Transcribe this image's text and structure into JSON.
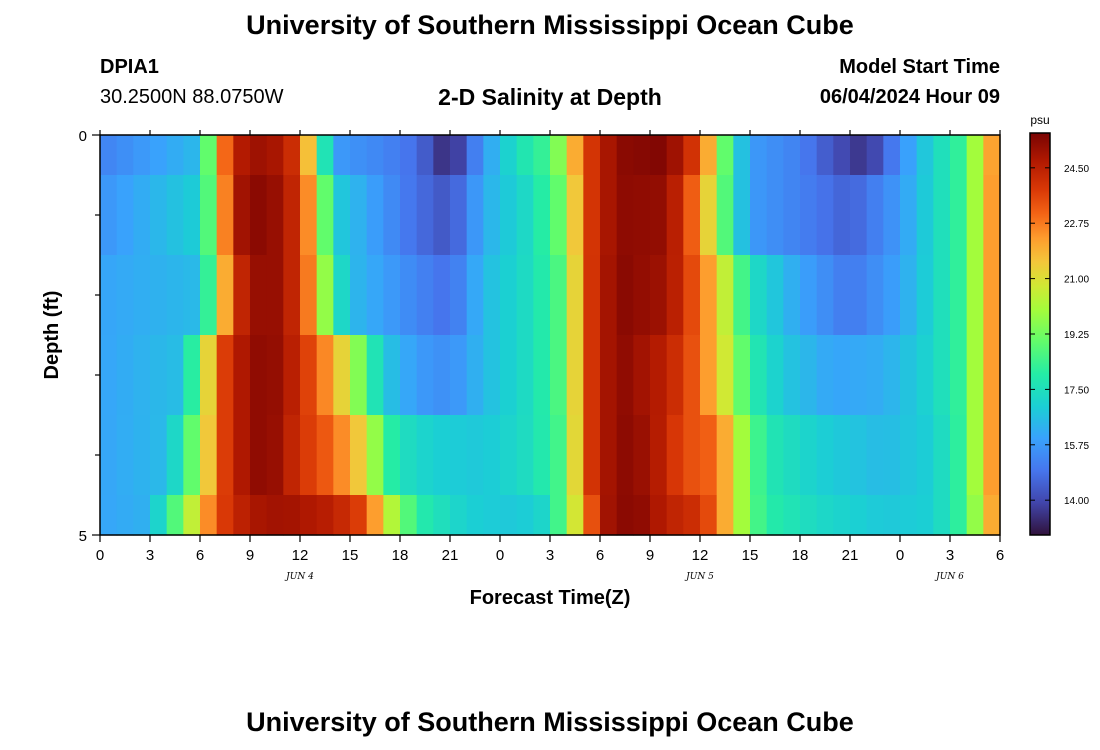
{
  "header": {
    "title": "University of Southern Mississippi Ocean Cube",
    "footer_title": "University of Southern Mississippi Ocean Cube",
    "station_id": "DPIA1",
    "coordinates": "30.2500N  88.0750W",
    "model_start_label": "Model Start Time",
    "model_start_value": "06/04/2024 Hour 09"
  },
  "chart_data": {
    "type": "heatmap",
    "title": "2-D Salinity at Depth",
    "xlabel": "Forecast Time(Z)",
    "ylabel": "Depth (ft)",
    "colorbar_unit": "psu",
    "colorbar_ticks": [
      "24.50",
      "22.75",
      "21.00",
      "19.25",
      "17.50",
      "15.75",
      "14.00"
    ],
    "colorbar_range": [
      12.9,
      25.6
    ],
    "x_tick_labels": [
      "0",
      "3",
      "6",
      "9",
      "12",
      "15",
      "18",
      "21",
      "0",
      "3",
      "6",
      "9",
      "12",
      "15",
      "18",
      "21",
      "0",
      "3",
      "6"
    ],
    "x_range_hours": [
      0,
      54
    ],
    "date_labels": [
      {
        "text": "JUN 4",
        "hour": 12
      },
      {
        "text": "JUN 5",
        "hour": 36
      },
      {
        "text": "JUN 6",
        "hour": 51
      }
    ],
    "y_tick_labels": [
      "0",
      "5"
    ],
    "y_range": [
      0,
      5
    ],
    "layers": [
      "0-0.5",
      "0.5-1.5",
      "1.5-2.5",
      "2.5-3.5",
      "3.5-4.5",
      "4.5-5"
    ],
    "layer_depths": [
      [
        0,
        0.5
      ],
      [
        0.5,
        1.5
      ],
      [
        1.5,
        2.5
      ],
      [
        2.5,
        3.5
      ],
      [
        3.5,
        4.5
      ],
      [
        4.5,
        5
      ]
    ],
    "time_step_hours": 1,
    "salinity_keyframes_by_layer": [
      [
        [
          0,
          15.2
        ],
        [
          6,
          16.5
        ],
        [
          7,
          21.5
        ],
        [
          8,
          24.5
        ],
        [
          10,
          25.2
        ],
        [
          12,
          23.8
        ],
        [
          13,
          19.5
        ],
        [
          14,
          15.8
        ],
        [
          17,
          15.3
        ],
        [
          19,
          14.8
        ],
        [
          21,
          13.2
        ],
        [
          23,
          15.8
        ],
        [
          25,
          17.5
        ],
        [
          27,
          18.5
        ],
        [
          28,
          20.5
        ],
        [
          29,
          23.5
        ],
        [
          31,
          25.3
        ],
        [
          34,
          25.5
        ],
        [
          36,
          23.5
        ],
        [
          37,
          20.5
        ],
        [
          38,
          17.5
        ],
        [
          39,
          15.8
        ],
        [
          42,
          15.2
        ],
        [
          44,
          14.2
        ],
        [
          46,
          13.5
        ],
        [
          48,
          15.5
        ],
        [
          50,
          17.2
        ],
        [
          52,
          18.5
        ],
        [
          53,
          21.5
        ],
        [
          54,
          22.8
        ]
      ],
      [
        [
          0,
          15.6
        ],
        [
          6,
          17.0
        ],
        [
          7,
          20.5
        ],
        [
          8,
          24.8
        ],
        [
          10,
          25.5
        ],
        [
          12,
          24.0
        ],
        [
          13,
          21.0
        ],
        [
          14,
          17.0
        ],
        [
          17,
          15.6
        ],
        [
          19,
          14.8
        ],
        [
          21,
          14.2
        ],
        [
          23,
          16.2
        ],
        [
          26,
          17.5
        ],
        [
          28,
          19.5
        ],
        [
          29,
          23.5
        ],
        [
          31,
          25.3
        ],
        [
          34,
          25.2
        ],
        [
          36,
          22.5
        ],
        [
          37,
          20.0
        ],
        [
          38,
          17.5
        ],
        [
          39,
          15.8
        ],
        [
          43,
          15.0
        ],
        [
          45,
          14.5
        ],
        [
          48,
          15.8
        ],
        [
          50,
          17.2
        ],
        [
          52,
          18.5
        ],
        [
          53,
          21.5
        ],
        [
          54,
          23.0
        ]
      ],
      [
        [
          0,
          16.0
        ],
        [
          6,
          16.5
        ],
        [
          7,
          20.0
        ],
        [
          8,
          24.0
        ],
        [
          10,
          25.5
        ],
        [
          12,
          24.0
        ],
        [
          13,
          21.5
        ],
        [
          14,
          18.0
        ],
        [
          15,
          16.5
        ],
        [
          19,
          15.3
        ],
        [
          21,
          14.8
        ],
        [
          23,
          16.5
        ],
        [
          26,
          17.5
        ],
        [
          28,
          19.0
        ],
        [
          29,
          23.5
        ],
        [
          31,
          25.4
        ],
        [
          34,
          25.0
        ],
        [
          36,
          23.0
        ],
        [
          37,
          21.5
        ],
        [
          38,
          19.5
        ],
        [
          39,
          17.5
        ],
        [
          42,
          16.0
        ],
        [
          45,
          15.0
        ],
        [
          48,
          16.0
        ],
        [
          50,
          17.2
        ],
        [
          52,
          18.5
        ],
        [
          53,
          21.5
        ],
        [
          54,
          23.0
        ]
      ],
      [
        [
          0,
          16.0
        ],
        [
          5,
          16.6
        ],
        [
          6,
          19.5
        ],
        [
          7,
          23.0
        ],
        [
          8,
          24.5
        ],
        [
          10,
          25.5
        ],
        [
          12,
          24.2
        ],
        [
          14,
          22.0
        ],
        [
          15,
          20.5
        ],
        [
          16,
          18.5
        ],
        [
          17,
          16.8
        ],
        [
          19,
          15.8
        ],
        [
          21,
          15.5
        ],
        [
          23,
          16.5
        ],
        [
          26,
          17.5
        ],
        [
          28,
          19.0
        ],
        [
          29,
          23.5
        ],
        [
          31,
          25.4
        ],
        [
          34,
          24.5
        ],
        [
          36,
          23.0
        ],
        [
          37,
          21.5
        ],
        [
          38,
          20.0
        ],
        [
          39,
          18.0
        ],
        [
          41,
          16.8
        ],
        [
          44,
          16.0
        ],
        [
          47,
          16.2
        ],
        [
          50,
          17.2
        ],
        [
          52,
          18.5
        ],
        [
          53,
          21.5
        ],
        [
          54,
          23.0
        ]
      ],
      [
        [
          0,
          16.0
        ],
        [
          4,
          16.5
        ],
        [
          5,
          18.0
        ],
        [
          6,
          20.0
        ],
        [
          7,
          23.0
        ],
        [
          8,
          24.5
        ],
        [
          10,
          25.5
        ],
        [
          12,
          24.0
        ],
        [
          14,
          23.0
        ],
        [
          16,
          21.0
        ],
        [
          17,
          18.5
        ],
        [
          18,
          17.5
        ],
        [
          20,
          17.0
        ],
        [
          23,
          16.8
        ],
        [
          26,
          17.5
        ],
        [
          28,
          18.8
        ],
        [
          29,
          23.5
        ],
        [
          31,
          25.4
        ],
        [
          33,
          25.0
        ],
        [
          35,
          23.5
        ],
        [
          37,
          23.0
        ],
        [
          38,
          21.0
        ],
        [
          39,
          19.0
        ],
        [
          40,
          17.8
        ],
        [
          43,
          17.0
        ],
        [
          47,
          16.5
        ],
        [
          50,
          17.0
        ],
        [
          52,
          18.5
        ],
        [
          53,
          21.5
        ],
        [
          54,
          23.0
        ]
      ],
      [
        [
          0,
          16.0
        ],
        [
          3,
          16.3
        ],
        [
          4,
          18.0
        ],
        [
          5,
          19.5
        ],
        [
          6,
          21.5
        ],
        [
          7,
          23.5
        ],
        [
          9,
          24.8
        ],
        [
          11,
          25.0
        ],
        [
          14,
          24.5
        ],
        [
          16,
          23.5
        ],
        [
          17,
          21.0
        ],
        [
          18,
          19.5
        ],
        [
          19,
          18.0
        ],
        [
          22,
          17.0
        ],
        [
          25,
          16.8
        ],
        [
          27,
          17.3
        ],
        [
          29,
          22.0
        ],
        [
          30,
          24.8
        ],
        [
          32,
          25.5
        ],
        [
          34,
          24.5
        ],
        [
          36,
          24.0
        ],
        [
          37,
          23.0
        ],
        [
          38,
          21.0
        ],
        [
          39,
          19.0
        ],
        [
          40,
          18.0
        ],
        [
          43,
          17.3
        ],
        [
          47,
          16.8
        ],
        [
          50,
          17.0
        ],
        [
          52,
          18.5
        ],
        [
          53,
          21.0
        ],
        [
          54,
          23.0
        ]
      ]
    ],
    "grid": false,
    "colorbar_position": "right"
  }
}
